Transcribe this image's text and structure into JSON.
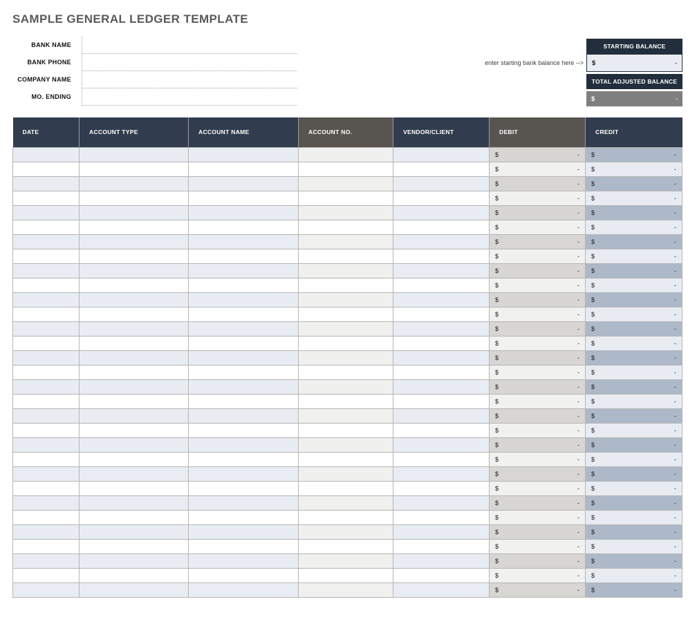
{
  "header": {
    "title": "SAMPLE GENERAL LEDGER TEMPLATE"
  },
  "form": {
    "fields": [
      {
        "label": "BANK NAME",
        "value": ""
      },
      {
        "label": "BANK PHONE",
        "value": ""
      },
      {
        "label": "COMPANY NAME",
        "value": ""
      },
      {
        "label": "MO. ENDING",
        "value": ""
      }
    ]
  },
  "balances": {
    "hint": "enter starting bank balance here -->",
    "starting": {
      "label": "STARTING BALANCE",
      "symbol": "$",
      "value": "-"
    },
    "total_adjusted": {
      "label": "TOTAL ADJUSTED BALANCE",
      "symbol": "$",
      "value": "-"
    }
  },
  "table": {
    "columns": [
      {
        "key": "date",
        "label": "DATE",
        "header_color": "#313d4e"
      },
      {
        "key": "account-type",
        "label": "ACCOUNT TYPE",
        "header_color": "#313d4e"
      },
      {
        "key": "account-name",
        "label": "ACCOUNT NAME",
        "header_color": "#313d4e"
      },
      {
        "key": "account-no",
        "label": "ACCOUNT NO.",
        "header_color": "#585551"
      },
      {
        "key": "vendor-client",
        "label": "VENDOR/CLIENT",
        "header_color": "#313d4e"
      },
      {
        "key": "debit",
        "label": "DEBIT",
        "header_color": "#585551"
      },
      {
        "key": "credit",
        "label": "CREDIT",
        "header_color": "#313d4e"
      }
    ],
    "row_count": 31,
    "empty_cell_value": "",
    "money_symbol": "$",
    "money_value": "-"
  },
  "colors": {
    "navy": "#313d4e",
    "navy-dark": "#222e3c",
    "grayhdr": "#585551",
    "row-odd": "#e9ecf2",
    "row-odd-accno": "#f0f0ee",
    "row-odd-debit": "#d7d6d2",
    "row-odd-credit": "#adb9c9",
    "row-even-debit": "#f1f1ef",
    "row-even-credit": "#e8ebf1",
    "light-val": "#e9edf3",
    "gray-val": "#7f7f7f"
  }
}
